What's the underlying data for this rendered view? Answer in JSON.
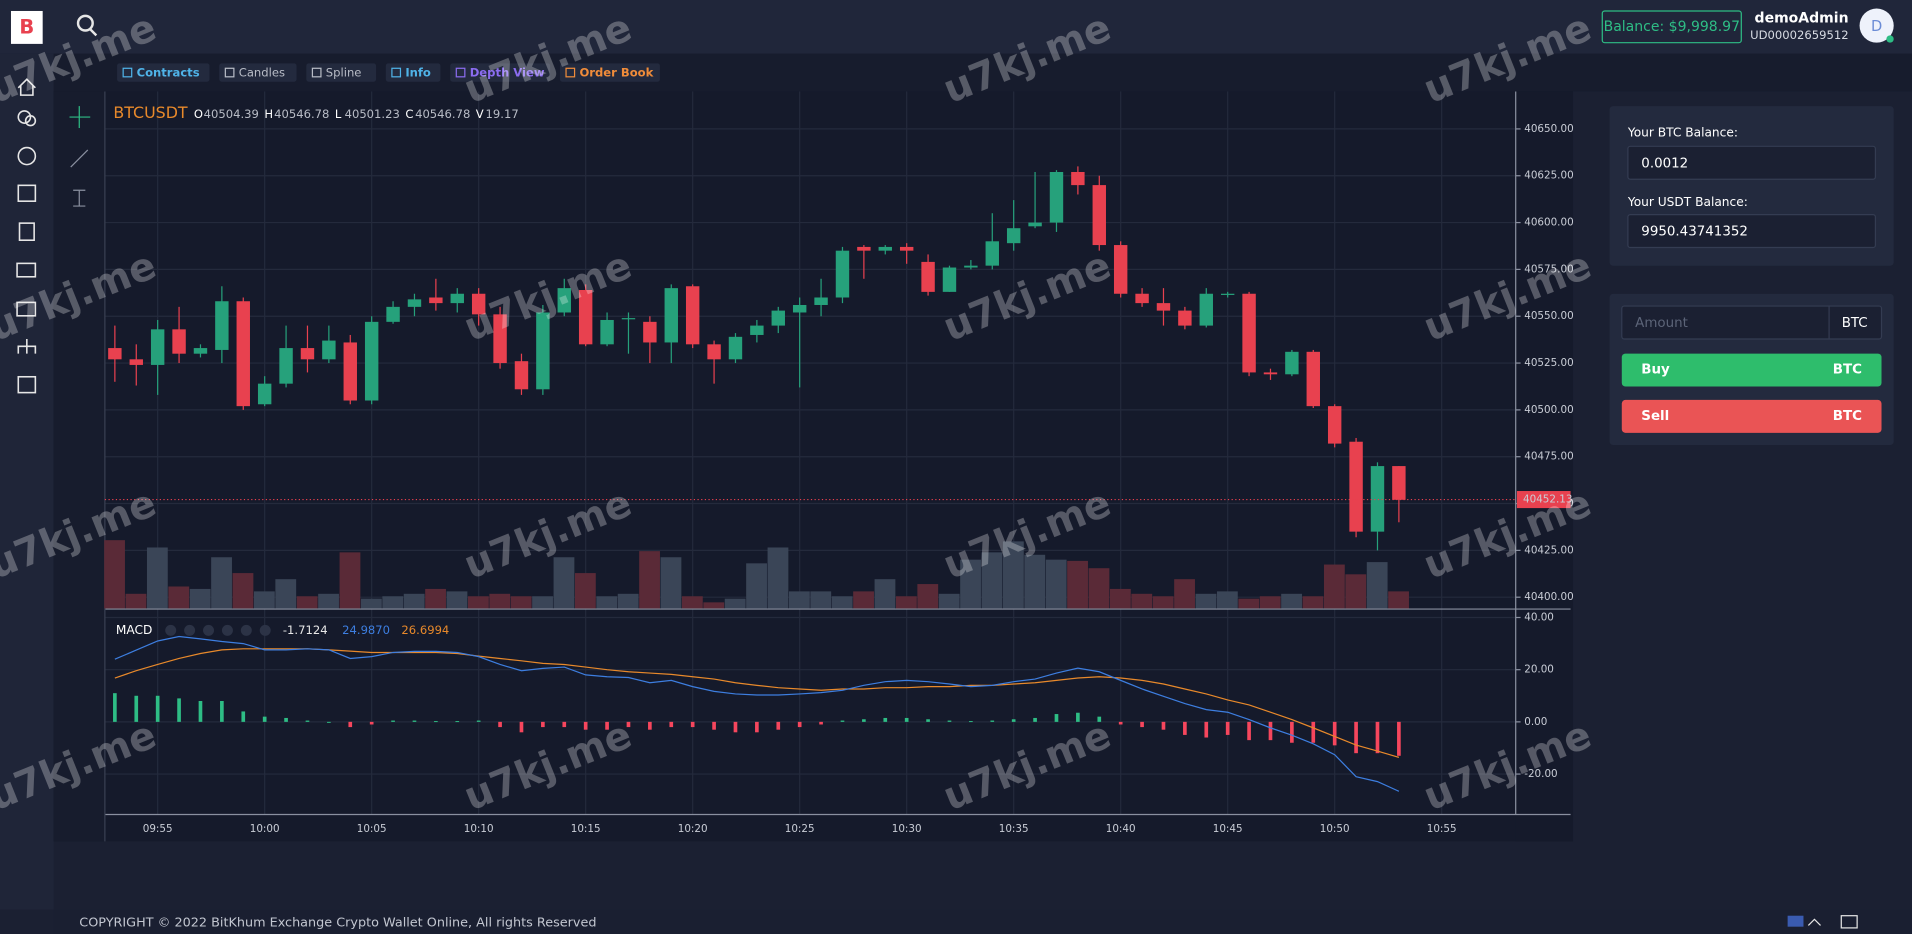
{
  "header": {
    "logo": "B",
    "balance": "Balance: $9,998.97",
    "username": "demoAdmin",
    "user_id": "UD00002659512",
    "avatar": "D"
  },
  "tabs": [
    "Contracts",
    "Candles",
    "Spline",
    "Info",
    "Depth View",
    "Order Book"
  ],
  "watermark": "u7kj.me",
  "wallet": {
    "btc_label": "Your BTC Balance:",
    "btc_value": "0.0012",
    "usdt_label": "Your USDT Balance:",
    "usdt_value": "9950.43741352"
  },
  "order": {
    "amount_placeholder": "Amount",
    "unit": "BTC",
    "buy": "Buy",
    "buy_unit": "BTC",
    "sell": "Sell",
    "sell_unit": "BTC"
  },
  "footer": "COPYRIGHT © 2022 BitKhum Exchange Crypto Wallet Online, All rights Reserved",
  "chart_data": {
    "type": "candlestick",
    "symbol": "BTCUSDT",
    "legend": [
      {
        "label": "O",
        "value": 40504.39
      },
      {
        "label": "H",
        "value": 40546.78
      },
      {
        "label": "L",
        "value": 40501.23
      },
      {
        "label": "C",
        "value": 40546.78
      },
      {
        "label": "V",
        "value": 19.17
      }
    ],
    "up_color": "#26a17b",
    "down_color": "#e8414f",
    "open": [
      40533,
      40527,
      40524,
      40543,
      40530,
      40532,
      40558,
      40503,
      40514,
      40533,
      40527,
      40536,
      40505,
      40547,
      40555,
      40560,
      40557,
      40562,
      40551,
      40526,
      40511,
      40552,
      40564,
      40535,
      40549,
      40547,
      40536,
      40566,
      40535,
      40527,
      40540,
      40545,
      40552,
      40556,
      40560,
      40587,
      40585,
      40587,
      40579,
      40563,
      40576,
      40577,
      40589,
      40598,
      40600,
      40627,
      40620,
      40588,
      40562,
      40557,
      40553,
      40545,
      40562,
      40562,
      40520,
      40519,
      40531,
      40502,
      40483,
      40435,
      40470
    ],
    "high": [
      40545,
      40535,
      40548,
      40555,
      40535,
      40566,
      40560,
      40518,
      40545,
      40545,
      40545,
      40540,
      40550,
      40558,
      40562,
      40570,
      40565,
      40565,
      40555,
      40530,
      40556,
      40570,
      40567,
      40552,
      40552,
      40550,
      40567,
      40567,
      40537,
      40541,
      40548,
      40555,
      40560,
      40570,
      40587,
      40588,
      40588,
      40589,
      40583,
      40577,
      40580,
      40605,
      40612,
      40627,
      40628,
      40630,
      40625,
      40590,
      40565,
      40565,
      40555,
      40565,
      40563,
      40563,
      40522,
      40532,
      40532,
      40503,
      40485,
      40472,
      40470
    ],
    "low": [
      40515,
      40513,
      40508,
      40525,
      40528,
      40525,
      40500,
      40502,
      40512,
      40520,
      40525,
      40503,
      40503,
      40546,
      40550,
      40553,
      40552,
      40545,
      40522,
      40508,
      40508,
      40550,
      40534,
      40534,
      40530,
      40525,
      40525,
      40533,
      40514,
      40525,
      40536,
      40541,
      40512,
      40550,
      40557,
      40570,
      40583,
      40578,
      40561,
      40563,
      40575,
      40575,
      40585,
      40597,
      40595,
      40615,
      40585,
      40560,
      40555,
      40545,
      40543,
      40544,
      40560,
      40518,
      40516,
      40518,
      40501,
      40480,
      40432,
      40425,
      40440
    ],
    "close": [
      40527,
      40524,
      40543,
      40530,
      40533,
      40558,
      40502,
      40514,
      40533,
      40527,
      40537,
      40505,
      40547,
      40555,
      40559,
      40557,
      40562,
      40551,
      40525,
      40511,
      40552,
      40565,
      40535,
      40548,
      40549,
      40536,
      40565,
      40535,
      40527,
      40539,
      40545,
      40553,
      40556,
      40560,
      40585,
      40585,
      40587,
      40585,
      40563,
      40576,
      40577,
      40590,
      40597,
      40600,
      40627,
      40620,
      40588,
      40562,
      40557,
      40553,
      40545,
      40562,
      40562,
      40520,
      40519,
      40531,
      40502,
      40482,
      40435,
      40470,
      40452
    ],
    "volume": [
      56,
      12,
      50,
      18,
      16,
      42,
      29,
      14,
      24,
      10,
      12,
      46,
      8,
      10,
      12,
      16,
      14,
      10,
      12,
      10,
      10,
      42,
      29,
      10,
      12,
      47,
      42,
      10,
      5,
      8,
      37,
      50,
      14,
      14,
      10,
      14,
      24,
      10,
      20,
      12,
      40,
      46,
      55,
      44,
      40,
      39,
      33,
      16,
      12,
      10,
      24,
      12,
      14,
      8,
      10,
      12,
      10,
      36,
      28,
      38,
      14
    ],
    "vlim": [
      0,
      60
    ],
    "last_price": 40452.13,
    "ylim": [
      40394,
      40670
    ],
    "yticks": [
      {
        "value": 40400,
        "label": "40400.00"
      },
      {
        "value": 40425,
        "label": "40425.00"
      },
      {
        "value": 40450,
        "label": "40450.00"
      },
      {
        "value": 40475,
        "label": "40475.00"
      },
      {
        "value": 40500,
        "label": "40500.00"
      },
      {
        "value": 40525,
        "label": "40525.00"
      },
      {
        "value": 40550,
        "label": "40550.00"
      },
      {
        "value": 40575,
        "label": "40575.00"
      },
      {
        "value": 40600,
        "label": "40600.00"
      },
      {
        "value": 40625,
        "label": "40625.00"
      },
      {
        "value": 40650,
        "label": "40650.00"
      }
    ],
    "xtick_labels": [
      "09:55",
      "10:00",
      "10:05",
      "10:10",
      "10:15",
      "10:20",
      "10:25",
      "10:30",
      "10:35",
      "10:40",
      "10:45",
      "10:50",
      "10:55"
    ],
    "grid": true,
    "macd": {
      "title": "MACD",
      "legend": [
        {
          "value": -1.7124,
          "label": "-1.7124",
          "color": "#e8e8e8"
        },
        {
          "value": 24.987,
          "label": "24.9870",
          "color": "#3d7ee0"
        },
        {
          "value": 26.6994,
          "label": "26.6994",
          "color": "#e8892b"
        }
      ],
      "ylim": [
        -35.5,
        43
      ],
      "yticks": [
        {
          "value": 40,
          "label": "40.00"
        },
        {
          "value": 20,
          "label": "20.00"
        },
        {
          "value": 0,
          "label": "0.00"
        },
        {
          "value": -20,
          "label": "-20.00"
        }
      ],
      "macd_color": "#3d7ee0",
      "signal_color": "#e8892b",
      "hist_up_color": "#2ebd85",
      "hist_down_color": "#f6465d",
      "macd": [
        24,
        27.5,
        31,
        32.7,
        31.8,
        30.8,
        30,
        27.6,
        27.6,
        28,
        27.6,
        24.3,
        25,
        26.6,
        27,
        27,
        26.6,
        25,
        22,
        19.6,
        20.5,
        21,
        18,
        17.3,
        17,
        15,
        15.9,
        13.5,
        11.7,
        10.7,
        10.3,
        10.3,
        10.7,
        11.2,
        12.1,
        14,
        15.4,
        15.9,
        15.4,
        14.5,
        13.5,
        14,
        15.4,
        16.4,
        18.7,
        20.6,
        19.2,
        15.9,
        12.6,
        9.8,
        7,
        4.7,
        3.7,
        0.9,
        -2.3,
        -5.1,
        -8.4,
        -12.6,
        -21,
        -22.9,
        -26.6
      ],
      "signal": [
        16.8,
        19.6,
        22,
        24.3,
        26.2,
        27.6,
        28,
        28,
        28,
        28,
        27.6,
        27.1,
        26.6,
        26.6,
        26.6,
        26.6,
        26.2,
        25.2,
        24.3,
        23.4,
        22.4,
        22,
        21,
        20,
        19.2,
        18.7,
        18.2,
        17.3,
        16.4,
        15,
        14,
        13.1,
        12.6,
        12.1,
        12.6,
        12.6,
        13.1,
        13.1,
        13.5,
        13.5,
        14,
        14,
        14.5,
        15,
        15.9,
        16.8,
        17.3,
        16.8,
        15.9,
        14.5,
        12.6,
        10.7,
        8.4,
        6.5,
        3.7,
        0.9,
        -2.3,
        -5.6,
        -8.9,
        -11.2,
        -13.6
      ],
      "histogram": [
        11,
        10,
        10,
        9,
        8,
        8,
        4,
        2,
        1.5,
        0.5,
        0,
        -2,
        -1,
        0.5,
        0.5,
        0.3,
        0.3,
        0.5,
        -2,
        -4,
        -2,
        -2,
        -3,
        -3,
        -2,
        -3,
        -2,
        -2,
        -3,
        -4,
        -4,
        -3,
        -2,
        -1,
        0.5,
        1,
        1.5,
        1.5,
        1,
        0.5,
        0.3,
        0.5,
        1,
        1.5,
        3,
        3.5,
        2,
        -1,
        -2,
        -3,
        -5,
        -6,
        -5,
        -7,
        -7,
        -8,
        -8,
        -9,
        -12,
        -12,
        -13
      ]
    }
  }
}
